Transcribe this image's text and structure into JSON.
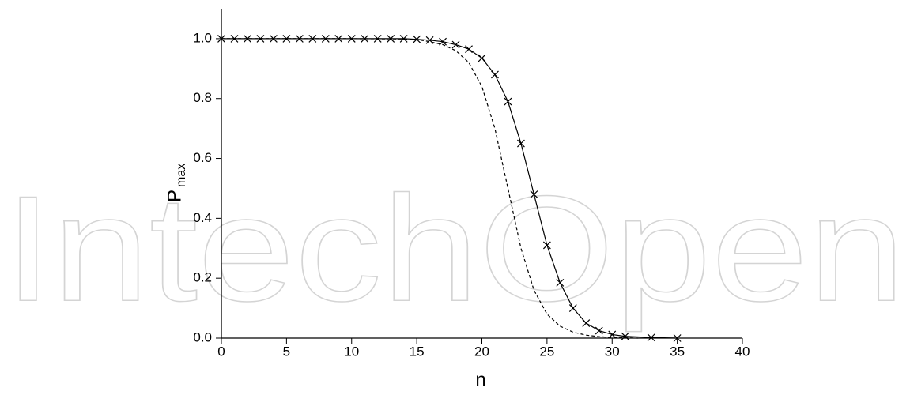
{
  "chart_data": {
    "type": "line",
    "watermark": "IntechOpen",
    "x_label": "n",
    "y_label": "P",
    "y_label_sub": "max",
    "xlim": [
      0,
      40
    ],
    "ylim": [
      0,
      1.1
    ],
    "xticks": [
      0,
      5,
      10,
      15,
      20,
      25,
      30,
      35,
      40
    ],
    "yticks": [
      {
        "value": 0,
        "label": "0.0"
      },
      {
        "value": 0.2,
        "label": "0.2"
      },
      {
        "value": 0.4,
        "label": "0.4"
      },
      {
        "value": 0.6,
        "label": "0.6"
      },
      {
        "value": 0.8,
        "label": "0.8"
      },
      {
        "value": 1,
        "label": "1.0"
      }
    ],
    "series": [
      {
        "color": "#000000",
        "dash": false,
        "markers": true,
        "x": [
          0,
          1,
          2,
          3,
          4,
          5,
          6,
          7,
          8,
          9,
          10,
          11,
          12,
          13,
          14,
          15,
          16,
          17,
          18,
          19,
          20,
          21,
          22,
          23,
          24,
          25,
          26,
          27,
          28,
          29,
          30,
          31,
          33,
          35
        ],
        "values": [
          1,
          1,
          1,
          1,
          1,
          1,
          1,
          1,
          1,
          1,
          1,
          1,
          1,
          1,
          1,
          0.998,
          0.995,
          0.99,
          0.98,
          0.965,
          0.935,
          0.88,
          0.79,
          0.65,
          0.48,
          0.31,
          0.185,
          0.1,
          0.05,
          0.025,
          0.012,
          0.006,
          0.002,
          0
        ]
      },
      {
        "color": "#000000",
        "dash": true,
        "markers": false,
        "x": [
          0,
          5,
          10,
          14,
          15,
          16,
          17,
          18,
          19,
          20,
          21,
          22,
          23,
          24,
          25,
          26,
          27,
          28,
          29,
          30,
          32
        ],
        "values": [
          1,
          1,
          1,
          0.999,
          0.997,
          0.99,
          0.98,
          0.96,
          0.92,
          0.84,
          0.7,
          0.5,
          0.3,
          0.16,
          0.08,
          0.04,
          0.02,
          0.01,
          0.005,
          0.002,
          0
        ]
      }
    ]
  }
}
